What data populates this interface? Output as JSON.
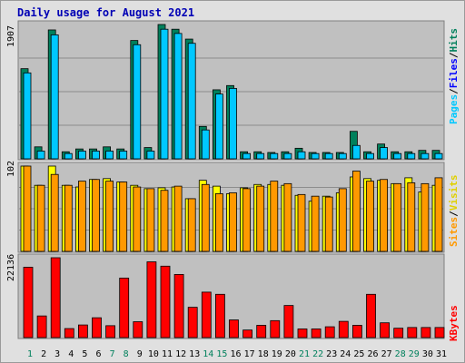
{
  "title": "Daily usage for August 2021",
  "chart_data": [
    {
      "type": "bar",
      "panel": "hits_files_pages",
      "title": "Daily usage for August 2021",
      "ymax_label": "1907",
      "legend": [
        "Pages",
        "/",
        "Files",
        "/",
        "Hits"
      ],
      "categories": [
        "1",
        "2",
        "3",
        "4",
        "5",
        "6",
        "7",
        "8",
        "9",
        "10",
        "11",
        "12",
        "13",
        "14",
        "15",
        "16",
        "17",
        "18",
        "19",
        "20",
        "21",
        "22",
        "23",
        "24",
        "25",
        "26",
        "27",
        "28",
        "29",
        "30",
        "31"
      ],
      "series": [
        {
          "name": "Hits",
          "color": "#00805c",
          "values": [
            1280,
            170,
            1830,
            100,
            140,
            140,
            170,
            140,
            1680,
            160,
            1907,
            1840,
            1700,
            460,
            980,
            1040,
            100,
            100,
            90,
            100,
            150,
            90,
            90,
            90,
            390,
            100,
            210,
            100,
            100,
            120,
            120
          ]
        },
        {
          "name": "Files",
          "color": "#00c8ff",
          "values": [
            1220,
            110,
            1760,
            75,
            110,
            110,
            110,
            110,
            1620,
            110,
            1840,
            1780,
            1640,
            410,
            920,
            1000,
            75,
            75,
            75,
            75,
            100,
            75,
            75,
            75,
            190,
            75,
            160,
            75,
            75,
            75,
            75
          ]
        },
        {
          "name": "Pages",
          "color": "#00c8ff",
          "values": [
            0,
            0,
            0,
            0,
            0,
            0,
            0,
            0,
            0,
            0,
            0,
            0,
            0,
            0,
            0,
            0,
            0,
            0,
            0,
            0,
            0,
            0,
            0,
            0,
            0,
            0,
            0,
            0,
            0,
            0,
            0
          ]
        }
      ],
      "ylim": [
        0,
        1907
      ]
    },
    {
      "type": "bar",
      "panel": "visits_sites",
      "ymax_label": "102",
      "legend": [
        "Sites",
        "/",
        "Visits"
      ],
      "categories": [
        "1",
        "2",
        "3",
        "4",
        "5",
        "6",
        "7",
        "8",
        "9",
        "10",
        "11",
        "12",
        "13",
        "14",
        "15",
        "16",
        "17",
        "18",
        "19",
        "20",
        "21",
        "22",
        "23",
        "24",
        "25",
        "26",
        "27",
        "28",
        "29",
        "30",
        "31"
      ],
      "series": [
        {
          "name": "Visits",
          "color": "#ffff00",
          "values": [
            102,
            79,
            102,
            79,
            77,
            86,
            87,
            83,
            79,
            75,
            76,
            77,
            63,
            85,
            78,
            69,
            76,
            80,
            80,
            79,
            67,
            60,
            66,
            70,
            89,
            87,
            85,
            81,
            88,
            71,
            79
          ]
        },
        {
          "name": "Sites",
          "color": "#ff9900",
          "values": [
            102,
            79,
            92,
            79,
            84,
            86,
            84,
            83,
            77,
            75,
            73,
            78,
            63,
            80,
            69,
            70,
            75,
            78,
            84,
            81,
            68,
            66,
            65,
            75,
            96,
            84,
            86,
            81,
            82,
            81,
            88
          ]
        }
      ],
      "ylim": [
        0,
        102
      ]
    },
    {
      "type": "bar",
      "panel": "kbytes",
      "ymax_label": "22136",
      "legend": [
        "KBytes"
      ],
      "categories": [
        "1",
        "2",
        "3",
        "4",
        "5",
        "6",
        "7",
        "8",
        "9",
        "10",
        "11",
        "12",
        "13",
        "14",
        "15",
        "16",
        "17",
        "18",
        "19",
        "20",
        "21",
        "22",
        "23",
        "24",
        "25",
        "26",
        "27",
        "28",
        "29",
        "30",
        "31"
      ],
      "series": [
        {
          "name": "KBytes",
          "color": "#ff0000",
          "values": [
            19500,
            6000,
            22136,
            2500,
            3500,
            5500,
            3300,
            16500,
            4400,
            21000,
            19800,
            17500,
            8400,
            12600,
            12000,
            4900,
            2100,
            3400,
            4700,
            8900,
            2400,
            2400,
            3000,
            4500,
            3400,
            12000,
            4100,
            2600,
            2800,
            2800,
            2800
          ]
        }
      ],
      "ylim": [
        0,
        22136
      ]
    }
  ],
  "weekend_days": [
    "1",
    "7",
    "8",
    "14",
    "15",
    "21",
    "22",
    "28",
    "29"
  ],
  "colors": {
    "plot_bg": "#c0c0c0",
    "frame_bg": "#e0e0e0",
    "grid": "#8c8c8c",
    "day_normal": "#000000",
    "day_weekend": "#00805c",
    "legend_pages": "#00c8ff",
    "legend_files": "#0000ff",
    "legend_hits": "#00805c",
    "legend_sites": "#ff9900",
    "legend_visits": "#ffff00",
    "legend_kbytes": "#ff0000",
    "title": "#0000b5"
  }
}
